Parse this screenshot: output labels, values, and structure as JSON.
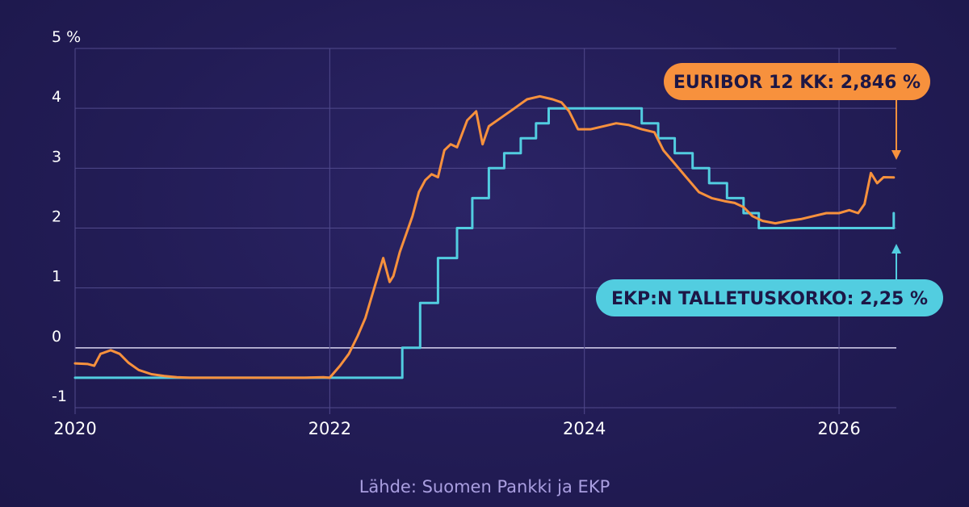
{
  "chart_data": {
    "type": "line",
    "title": "",
    "xlabel": "",
    "ylabel": "",
    "xlim": [
      2020.0,
      2026.45
    ],
    "ylim": [
      -1,
      5
    ],
    "y_ticks": [
      {
        "value": 5,
        "label": "5 %"
      },
      {
        "value": 4,
        "label": "4"
      },
      {
        "value": 3,
        "label": "3"
      },
      {
        "value": 2,
        "label": "2"
      },
      {
        "value": 1,
        "label": "1"
      },
      {
        "value": 0,
        "label": "0"
      },
      {
        "value": -1,
        "label": "-1"
      }
    ],
    "x_ticks": [
      {
        "value": 2020,
        "label": "2020"
      },
      {
        "value": 2022,
        "label": "2022"
      },
      {
        "value": 2024,
        "label": "2024"
      },
      {
        "value": 2026,
        "label": "2026"
      }
    ],
    "grid": true,
    "series": [
      {
        "name": "EURIBOR 12 KK",
        "color": "#f7913d",
        "style": "line",
        "x": [
          2020.0,
          2020.1,
          2020.15,
          2020.2,
          2020.28,
          2020.35,
          2020.42,
          2020.5,
          2020.6,
          2020.7,
          2020.8,
          2020.9,
          2021.0,
          2021.2,
          2021.5,
          2021.8,
          2021.95,
          2022.0,
          2022.08,
          2022.15,
          2022.22,
          2022.28,
          2022.35,
          2022.42,
          2022.47,
          2022.5,
          2022.55,
          2022.6,
          2022.65,
          2022.7,
          2022.75,
          2022.8,
          2022.85,
          2022.9,
          2022.95,
          2023.0,
          2023.08,
          2023.15,
          2023.2,
          2023.25,
          2023.35,
          2023.45,
          2023.55,
          2023.65,
          2023.75,
          2023.82,
          2023.88,
          2023.95,
          2024.05,
          2024.15,
          2024.25,
          2024.35,
          2024.45,
          2024.55,
          2024.62,
          2024.7,
          2024.8,
          2024.9,
          2025.0,
          2025.1,
          2025.18,
          2025.25,
          2025.32,
          2025.4,
          2025.5,
          2025.6,
          2025.7,
          2025.8,
          2025.9,
          2026.0,
          2026.08,
          2026.15,
          2026.2,
          2026.25,
          2026.3,
          2026.35,
          2026.43
        ],
        "values": [
          -0.26,
          -0.27,
          -0.3,
          -0.1,
          -0.04,
          -0.1,
          -0.25,
          -0.37,
          -0.44,
          -0.47,
          -0.49,
          -0.5,
          -0.5,
          -0.5,
          -0.5,
          -0.5,
          -0.49,
          -0.5,
          -0.3,
          -0.1,
          0.2,
          0.5,
          1.0,
          1.5,
          1.1,
          1.2,
          1.6,
          1.9,
          2.2,
          2.6,
          2.8,
          2.9,
          2.85,
          3.3,
          3.4,
          3.35,
          3.8,
          3.95,
          3.4,
          3.7,
          3.85,
          4.0,
          4.15,
          4.2,
          4.15,
          4.1,
          3.95,
          3.65,
          3.65,
          3.7,
          3.75,
          3.72,
          3.65,
          3.6,
          3.3,
          3.1,
          2.85,
          2.6,
          2.5,
          2.45,
          2.42,
          2.35,
          2.2,
          2.12,
          2.08,
          2.12,
          2.15,
          2.2,
          2.25,
          2.25,
          2.3,
          2.25,
          2.4,
          2.92,
          2.75,
          2.85,
          2.846
        ]
      },
      {
        "name": "EKP:N TALLETUSKORKO",
        "color": "#52cde0",
        "style": "step",
        "x": [
          2020.0,
          2022.57,
          2022.71,
          2022.85,
          2023.0,
          2023.12,
          2023.25,
          2023.37,
          2023.5,
          2023.62,
          2023.72,
          2024.45,
          2024.58,
          2024.71,
          2024.85,
          2024.98,
          2025.12,
          2025.25,
          2025.37,
          2025.48,
          2026.4,
          2026.43
        ],
        "values": [
          -0.5,
          0.0,
          0.75,
          1.5,
          2.0,
          2.5,
          3.0,
          3.25,
          3.5,
          3.75,
          4.0,
          3.75,
          3.5,
          3.25,
          3.0,
          2.75,
          2.5,
          2.25,
          2.0,
          2.0,
          2.0,
          2.25
        ]
      }
    ],
    "annotations": [
      {
        "label": "EURIBOR 12 KK: 2,846 %",
        "color": "#f7913d",
        "arrow": "down"
      },
      {
        "label": "EKP:N TALLETUSKORKO: 2,25 %",
        "color": "#52cde0",
        "arrow": "up"
      }
    ],
    "source": "Lähde: Suomen Pankki ja EKP"
  },
  "colors": {
    "background": "#221c55",
    "grid": "#514a8c",
    "zero_line": "#d9d5f0",
    "text": "#ffffff",
    "source_text": "#a99ee0"
  }
}
